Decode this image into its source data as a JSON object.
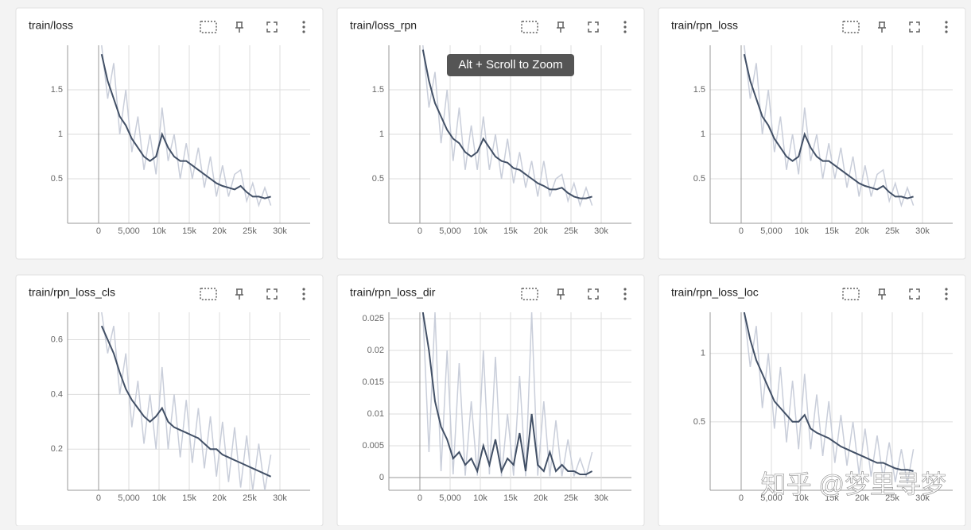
{
  "chart_data": [
    {
      "type": "line",
      "title": "train/loss",
      "x": [
        500,
        1500,
        2500,
        3500,
        4500,
        5500,
        6500,
        7500,
        8500,
        9500,
        10500,
        11500,
        12500,
        13500,
        14500,
        15500,
        16500,
        17500,
        18500,
        19500,
        20500,
        21500,
        22500,
        23500,
        24500,
        25500,
        26500,
        27500,
        28500
      ],
      "series": [
        {
          "color": "#c9ceda",
          "values": [
            2.0,
            1.4,
            1.8,
            1.0,
            1.5,
            0.8,
            1.2,
            0.6,
            1.0,
            0.55,
            1.3,
            0.7,
            1.0,
            0.5,
            0.9,
            0.5,
            0.85,
            0.4,
            0.75,
            0.3,
            0.65,
            0.3,
            0.55,
            0.6,
            0.25,
            0.45,
            0.2,
            0.4,
            0.2
          ]
        },
        {
          "color": "#425066",
          "values": [
            1.9,
            1.6,
            1.4,
            1.2,
            1.1,
            0.95,
            0.85,
            0.75,
            0.7,
            0.75,
            1.0,
            0.85,
            0.75,
            0.7,
            0.7,
            0.65,
            0.6,
            0.55,
            0.5,
            0.45,
            0.42,
            0.4,
            0.38,
            0.42,
            0.35,
            0.3,
            0.3,
            0.28,
            0.3
          ]
        }
      ],
      "xlim": [
        -5130,
        35000
      ],
      "xticks": [
        0,
        {
          "value": 5000,
          "label": "5,000"
        },
        {
          "value": 10000,
          "label": "10k"
        },
        {
          "value": 15000,
          "label": "15k"
        },
        {
          "value": 20000,
          "label": "20k"
        },
        {
          "value": 25000,
          "label": "25k"
        },
        {
          "value": 30000,
          "label": "30k"
        }
      ],
      "ylim": [
        0,
        2
      ],
      "yticks": [
        0.5,
        1,
        1.5
      ],
      "grid": true
    },
    {
      "type": "line",
      "title": "train/loss_rpn",
      "x": [
        500,
        1500,
        2500,
        3500,
        4500,
        5500,
        6500,
        7500,
        8500,
        9500,
        10500,
        11500,
        12500,
        13500,
        14500,
        15500,
        16500,
        17500,
        18500,
        19500,
        20500,
        21500,
        22500,
        23500,
        24500,
        25500,
        26500,
        27500,
        28500
      ],
      "series": [
        {
          "color": "#c9ceda",
          "values": [
            2.0,
            1.3,
            1.7,
            0.9,
            1.5,
            0.7,
            1.3,
            0.6,
            1.1,
            0.6,
            1.2,
            0.6,
            1.0,
            0.5,
            0.95,
            0.45,
            0.8,
            0.4,
            0.7,
            0.3,
            0.7,
            0.3,
            0.5,
            0.55,
            0.25,
            0.45,
            0.2,
            0.4,
            0.2
          ]
        },
        {
          "color": "#425066",
          "values": [
            1.95,
            1.6,
            1.35,
            1.2,
            1.05,
            0.95,
            0.9,
            0.8,
            0.75,
            0.8,
            0.95,
            0.85,
            0.75,
            0.7,
            0.68,
            0.62,
            0.6,
            0.55,
            0.5,
            0.45,
            0.42,
            0.38,
            0.38,
            0.4,
            0.34,
            0.3,
            0.28,
            0.28,
            0.3
          ]
        }
      ],
      "xlim": [
        -5130,
        35000
      ],
      "xticks": [
        0,
        {
          "value": 5000,
          "label": "5,000"
        },
        {
          "value": 10000,
          "label": "10k"
        },
        {
          "value": 15000,
          "label": "15k"
        },
        {
          "value": 20000,
          "label": "20k"
        },
        {
          "value": 25000,
          "label": "25k"
        },
        {
          "value": 30000,
          "label": "30k"
        }
      ],
      "ylim": [
        0,
        2
      ],
      "yticks": [
        0.5,
        1,
        1.5
      ],
      "grid": true
    },
    {
      "type": "line",
      "title": "train/rpn_loss",
      "x": [
        500,
        1500,
        2500,
        3500,
        4500,
        5500,
        6500,
        7500,
        8500,
        9500,
        10500,
        11500,
        12500,
        13500,
        14500,
        15500,
        16500,
        17500,
        18500,
        19500,
        20500,
        21500,
        22500,
        23500,
        24500,
        25500,
        26500,
        27500,
        28500
      ],
      "series": [
        {
          "color": "#c9ceda",
          "values": [
            2.0,
            1.4,
            1.8,
            1.0,
            1.5,
            0.8,
            1.2,
            0.6,
            1.0,
            0.55,
            1.3,
            0.7,
            1.0,
            0.5,
            0.9,
            0.5,
            0.85,
            0.4,
            0.75,
            0.3,
            0.65,
            0.3,
            0.55,
            0.6,
            0.25,
            0.45,
            0.2,
            0.4,
            0.2
          ]
        },
        {
          "color": "#425066",
          "values": [
            1.9,
            1.6,
            1.4,
            1.2,
            1.1,
            0.95,
            0.85,
            0.75,
            0.7,
            0.75,
            1.0,
            0.85,
            0.75,
            0.7,
            0.7,
            0.65,
            0.6,
            0.55,
            0.5,
            0.45,
            0.42,
            0.4,
            0.38,
            0.42,
            0.35,
            0.3,
            0.3,
            0.28,
            0.3
          ]
        }
      ],
      "xlim": [
        -5130,
        35000
      ],
      "xticks": [
        0,
        {
          "value": 5000,
          "label": "5,000"
        },
        {
          "value": 10000,
          "label": "10k"
        },
        {
          "value": 15000,
          "label": "15k"
        },
        {
          "value": 20000,
          "label": "20k"
        },
        {
          "value": 25000,
          "label": "25k"
        },
        {
          "value": 30000,
          "label": "30k"
        }
      ],
      "ylim": [
        0,
        2
      ],
      "yticks": [
        0.5,
        1,
        1.5
      ],
      "grid": true
    },
    {
      "type": "line",
      "title": "train/rpn_loss_cls",
      "x": [
        500,
        1500,
        2500,
        3500,
        4500,
        5500,
        6500,
        7500,
        8500,
        9500,
        10500,
        11500,
        12500,
        13500,
        14500,
        15500,
        16500,
        17500,
        18500,
        19500,
        20500,
        21500,
        22500,
        23500,
        24500,
        25500,
        26500,
        27500,
        28500
      ],
      "series": [
        {
          "color": "#c9ceda",
          "values": [
            0.7,
            0.55,
            0.65,
            0.4,
            0.55,
            0.28,
            0.45,
            0.22,
            0.4,
            0.2,
            0.5,
            0.2,
            0.4,
            0.17,
            0.38,
            0.15,
            0.35,
            0.13,
            0.32,
            0.1,
            0.3,
            0.08,
            0.28,
            0.06,
            0.25,
            0.05,
            0.22,
            0.05,
            0.18
          ]
        },
        {
          "color": "#425066",
          "values": [
            0.65,
            0.6,
            0.55,
            0.48,
            0.42,
            0.38,
            0.35,
            0.32,
            0.3,
            0.32,
            0.35,
            0.3,
            0.28,
            0.27,
            0.26,
            0.25,
            0.24,
            0.22,
            0.2,
            0.2,
            0.18,
            0.17,
            0.16,
            0.15,
            0.14,
            0.13,
            0.12,
            0.11,
            0.1
          ]
        }
      ],
      "xlim": [
        -5130,
        35000
      ],
      "xticks": [
        0,
        {
          "value": 5000,
          "label": "5,000"
        },
        {
          "value": 10000,
          "label": "10k"
        },
        {
          "value": 15000,
          "label": "15k"
        },
        {
          "value": 20000,
          "label": "20k"
        },
        {
          "value": 25000,
          "label": "25k"
        },
        {
          "value": 30000,
          "label": "30k"
        }
      ],
      "ylim": [
        0.05,
        0.7
      ],
      "yticks": [
        0.2,
        0.4,
        0.6
      ],
      "grid": true
    },
    {
      "type": "line",
      "title": "train/rpn_loss_dir",
      "x": [
        500,
        1500,
        2500,
        3500,
        4500,
        5500,
        6500,
        7500,
        8500,
        9500,
        10500,
        11500,
        12500,
        13500,
        14500,
        15500,
        16500,
        17500,
        18500,
        19500,
        20500,
        21500,
        22500,
        23500,
        24500,
        25500,
        26500,
        27500,
        28500
      ],
      "series": [
        {
          "color": "#c9ceda",
          "values": [
            0.026,
            0.004,
            0.026,
            0.001,
            0.02,
            0.0005,
            0.018,
            0.0003,
            0.012,
            0.0003,
            0.02,
            0.0005,
            0.019,
            0.0002,
            0.01,
            0.0003,
            0.016,
            0.0002,
            0.026,
            0.0003,
            0.012,
            0.0002,
            0.009,
            0.0002,
            0.006,
            0.0002,
            0.003,
            0.0002,
            0.004
          ]
        },
        {
          "color": "#425066",
          "values": [
            0.026,
            0.02,
            0.012,
            0.008,
            0.006,
            0.003,
            0.004,
            0.002,
            0.003,
            0.001,
            0.005,
            0.002,
            0.006,
            0.001,
            0.003,
            0.002,
            0.007,
            0.001,
            0.01,
            0.002,
            0.001,
            0.004,
            0.001,
            0.002,
            0.001,
            0.001,
            0.0005,
            0.0005,
            0.001
          ]
        }
      ],
      "xlim": [
        -5130,
        35000
      ],
      "xticks": [
        0,
        {
          "value": 5000,
          "label": "5,000"
        },
        {
          "value": 10000,
          "label": "10k"
        },
        {
          "value": 15000,
          "label": "15k"
        },
        {
          "value": 20000,
          "label": "20k"
        },
        {
          "value": 25000,
          "label": "25k"
        },
        {
          "value": 30000,
          "label": "30k"
        }
      ],
      "ylim": [
        -0.002,
        0.026
      ],
      "yticks": [
        0,
        0.005,
        0.01,
        0.015,
        0.02,
        0.025
      ],
      "grid": true
    },
    {
      "type": "line",
      "title": "train/rpn_loss_loc",
      "x": [
        500,
        1500,
        2500,
        3500,
        4500,
        5500,
        6500,
        7500,
        8500,
        9500,
        10500,
        11500,
        12500,
        13500,
        14500,
        15500,
        16500,
        17500,
        18500,
        19500,
        20500,
        21500,
        22500,
        23500,
        24500,
        25500,
        26500,
        27500,
        28500
      ],
      "series": [
        {
          "color": "#c9ceda",
          "values": [
            1.3,
            0.9,
            1.2,
            0.6,
            1.0,
            0.45,
            0.9,
            0.35,
            0.8,
            0.3,
            0.85,
            0.3,
            0.7,
            0.25,
            0.65,
            0.2,
            0.55,
            0.18,
            0.5,
            0.12,
            0.45,
            0.1,
            0.4,
            0.08,
            0.35,
            0.06,
            0.3,
            0.05,
            0.3
          ]
        },
        {
          "color": "#425066",
          "values": [
            1.3,
            1.1,
            0.95,
            0.85,
            0.75,
            0.65,
            0.6,
            0.55,
            0.5,
            0.5,
            0.55,
            0.45,
            0.42,
            0.4,
            0.38,
            0.35,
            0.32,
            0.3,
            0.28,
            0.26,
            0.24,
            0.22,
            0.2,
            0.2,
            0.18,
            0.16,
            0.15,
            0.15,
            0.14
          ]
        }
      ],
      "xlim": [
        -5130,
        35000
      ],
      "xticks": [
        0,
        {
          "value": 5000,
          "label": "5,000"
        },
        {
          "value": 10000,
          "label": "10k"
        },
        {
          "value": 15000,
          "label": "15k"
        },
        {
          "value": 20000,
          "label": "20k"
        },
        {
          "value": 25000,
          "label": "25k"
        },
        {
          "value": 30000,
          "label": "30k"
        }
      ],
      "ylim": [
        0,
        1.3
      ],
      "yticks": [
        0.5,
        1
      ],
      "grid": true
    }
  ],
  "tooltip": "Alt + Scroll to Zoom",
  "watermark": "知乎 @梦里寻梦"
}
